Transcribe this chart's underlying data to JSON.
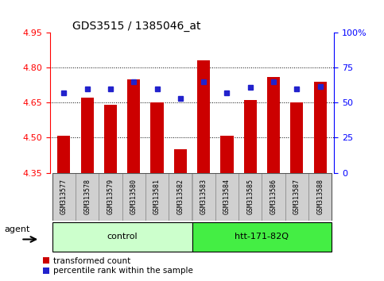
{
  "title": "GDS3515 / 1385046_at",
  "samples": [
    "GSM313577",
    "GSM313578",
    "GSM313579",
    "GSM313580",
    "GSM313581",
    "GSM313582",
    "GSM313583",
    "GSM313584",
    "GSM313585",
    "GSM313586",
    "GSM313587",
    "GSM313588"
  ],
  "red_values": [
    4.51,
    4.67,
    4.64,
    4.75,
    4.65,
    4.45,
    4.83,
    4.51,
    4.66,
    4.76,
    4.65,
    4.74
  ],
  "blue_values": [
    4.69,
    4.71,
    4.71,
    4.74,
    4.71,
    4.668,
    4.74,
    4.69,
    4.715,
    4.74,
    4.71,
    4.72
  ],
  "ymin": 4.35,
  "ymax": 4.95,
  "yticks": [
    4.35,
    4.5,
    4.65,
    4.8,
    4.95
  ],
  "grid_lines": [
    4.5,
    4.65,
    4.8
  ],
  "right_ytick_labels": [
    "0",
    "25",
    "50",
    "75",
    "100%"
  ],
  "right_ytick_vals": [
    0,
    25,
    50,
    75,
    100
  ],
  "bar_color": "#cc0000",
  "dot_color": "#2222cc",
  "bar_bottom": 4.35,
  "bar_width": 0.55,
  "dot_size": 4,
  "ctrl_color": "#ccffcc",
  "htt_color": "#44ee44",
  "agent_label": "agent",
  "ctrl_label": "control",
  "htt_label": "htt-171-82Q",
  "legend_red": "transformed count",
  "legend_blue": "percentile rank within the sample",
  "title_fontsize": 10,
  "tick_fontsize": 8,
  "label_fontsize": 8,
  "xticklabel_fontsize": 6,
  "group_fontsize": 8,
  "legend_fontsize": 7.5,
  "bg_color": "#ffffff",
  "xticklabel_bg": "#d0d0d0"
}
